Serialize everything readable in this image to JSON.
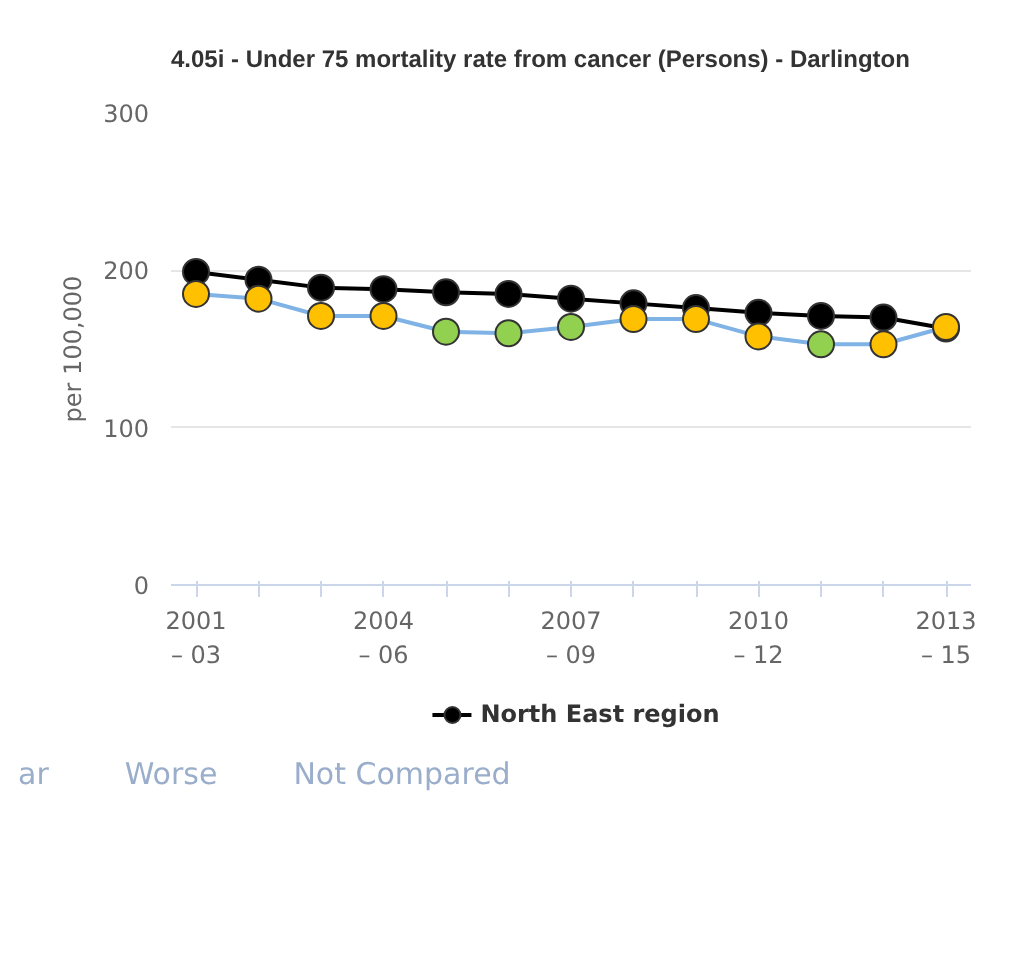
{
  "chart_data": {
    "type": "line",
    "title": "4.05i - Under 75 mortality rate from cancer (Persons) - Darlington",
    "ylabel": "per 100,000",
    "categories": [
      "2001\n– 03",
      null,
      null,
      "2004\n– 06",
      null,
      null,
      "2007\n– 09",
      null,
      null,
      "2010\n– 12",
      null,
      null,
      "2013\n– 15"
    ],
    "series": [
      {
        "color": "#7fb2e5",
        "colors": [
          "#ffc000",
          "#ffc000",
          "#ffc000",
          "#ffc000",
          "#92d050",
          "#92d050",
          "#92d050",
          "#ffc000",
          "#ffc000",
          "#ffc000",
          "#92d050",
          "#ffc000",
          "#ffc000"
        ],
        "values": [
          185,
          182,
          171,
          171,
          161,
          160,
          164,
          169,
          169,
          158,
          153,
          153,
          164
        ]
      },
      {
        "name": "North East region",
        "color": "#000000",
        "values": [
          199,
          194,
          189,
          188,
          186,
          185,
          182,
          179,
          176,
          173,
          171,
          170,
          163
        ]
      }
    ],
    "ylim": [
      0,
      300
    ],
    "yticks": [
      0,
      100,
      200,
      300
    ],
    "grid": "y",
    "legend": "bottom",
    "marker": "circle",
    "line_style": "solid",
    "annotations": [
      "ar",
      "Worse",
      "Not Compared"
    ]
  }
}
